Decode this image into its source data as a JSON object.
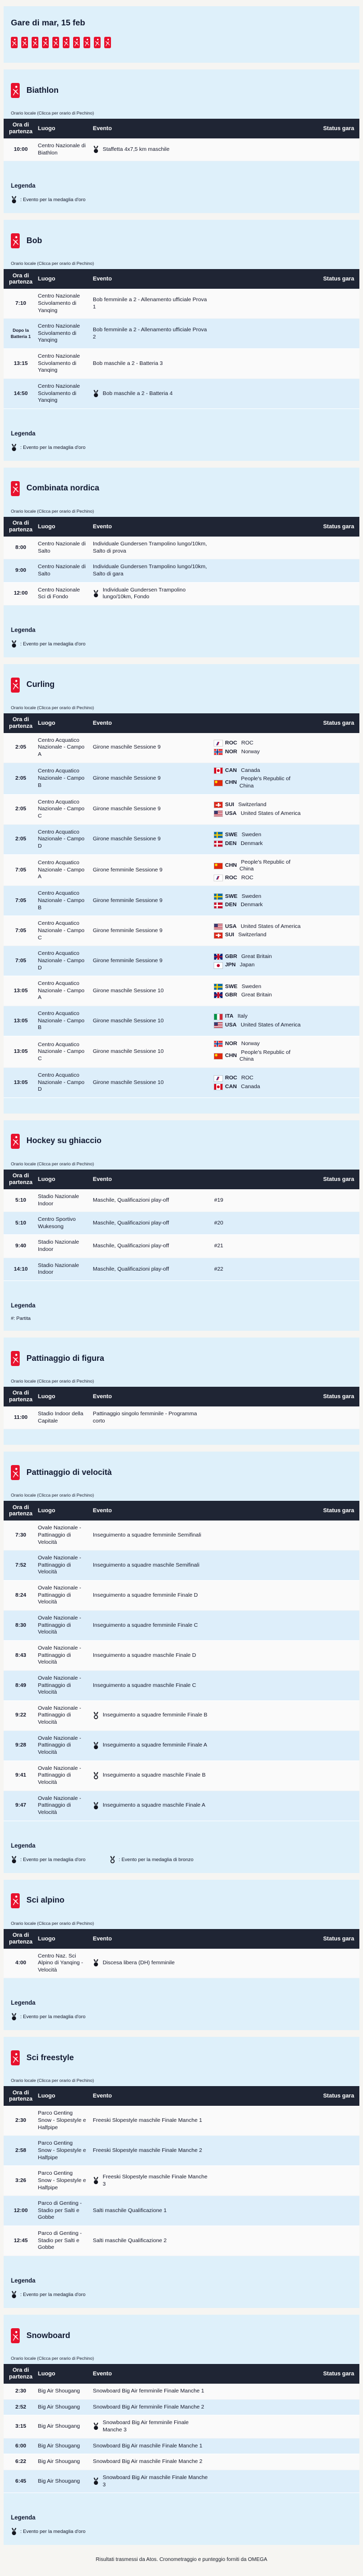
{
  "page": {
    "title": "Gare di mar, 15 feb",
    "time_note": "Orario locale (Clicca per orario di Pechino)",
    "footer": "Risultati trasmessi da Atos. Cronometraggio e punteggio forniti da OMEGA"
  },
  "colors": {
    "accent_red": "#e8112d",
    "table_header_bg": "#1f2534",
    "card_bg": "#def0fa",
    "row_bg": "#fafafa",
    "row_alt_bg": "#ddeefa"
  },
  "columns": {
    "time": "Ora di partenza",
    "venue": "Luogo",
    "event": "Evento",
    "status": "Status gara"
  },
  "legend": {
    "heading": "Legenda",
    "gold": ": Evento per la medaglia d'oro",
    "bronze": ": Evento per la medaglia di bronzo",
    "match": "#: Partita"
  },
  "sports_nav": [
    "biathlon",
    "bob",
    "combinata-nordica",
    "curling",
    "hockey-su-ghiaccio",
    "pattinaggio-di-figura",
    "pattinaggio-di-velocita",
    "sci-alpino",
    "sci-freestyle",
    "snowboard"
  ],
  "sections": [
    {
      "id": "biathlon",
      "title": "Biathlon",
      "legend": [
        "gold"
      ],
      "rows": [
        {
          "time": "10:00",
          "venue": "Centro Nazionale di Biathlon",
          "event": "Staffetta 4x7,5 km maschile",
          "medal": "gold"
        }
      ]
    },
    {
      "id": "bob",
      "title": "Bob",
      "legend": [
        "gold"
      ],
      "rows": [
        {
          "time": "7:10",
          "venue": "Centro Nazionale Scivolamento di Yanqing",
          "event": "Bob femminile a 2 - Allenamento ufficiale Prova 1"
        },
        {
          "time": "Dopo la Batteria 1",
          "time_small": true,
          "venue": "Centro Nazionale Scivolamento di Yanqing",
          "event": "Bob femminile a 2 - Allenamento ufficiale Prova 2"
        },
        {
          "time": "13:15",
          "venue": "Centro Nazionale Scivolamento di Yanqing",
          "event": "Bob maschile a 2 - Batteria 3"
        },
        {
          "time": "14:50",
          "venue": "Centro Nazionale Scivolamento di Yanqing",
          "event": "Bob maschile a 2 - Batteria 4",
          "medal": "gold"
        }
      ]
    },
    {
      "id": "combinata-nordica",
      "title": "Combinata nordica",
      "legend": [
        "gold"
      ],
      "rows": [
        {
          "time": "8:00",
          "venue": "Centro Nazionale di Salto",
          "event": "Individuale Gundersen Trampolino lungo/10km, Salto di prova"
        },
        {
          "time": "9:00",
          "venue": "Centro Nazionale di Salto",
          "event": "Individuale Gundersen Trampolino lungo/10km, Salto di gara"
        },
        {
          "time": "12:00",
          "venue": "Centro Nazionale Sci di Fondo",
          "event": "Individuale Gundersen Trampolino lungo/10km, Fondo",
          "medal": "gold"
        }
      ]
    },
    {
      "id": "curling",
      "title": "Curling",
      "legend": [],
      "rows": [
        {
          "time": "2:05",
          "venue": "Centro Acquatico Nazionale - Campo A",
          "event": "Girone maschile Sessione 9",
          "teams": [
            {
              "flag": "roc",
              "code": "ROC",
              "name": "ROC"
            },
            {
              "flag": "nor",
              "code": "NOR",
              "name": "Norway"
            }
          ]
        },
        {
          "time": "2:05",
          "venue": "Centro Acquatico Nazionale - Campo B",
          "event": "Girone maschile Sessione 9",
          "teams": [
            {
              "flag": "can",
              "code": "CAN",
              "name": "Canada"
            },
            {
              "flag": "chn",
              "code": "CHN",
              "name": "People's Republic of China"
            }
          ]
        },
        {
          "time": "2:05",
          "venue": "Centro Acquatico Nazionale - Campo C",
          "event": "Girone maschile Sessione 9",
          "teams": [
            {
              "flag": "sui",
              "code": "SUI",
              "name": "Switzerland"
            },
            {
              "flag": "usa",
              "code": "USA",
              "name": "United States of America"
            }
          ]
        },
        {
          "time": "2:05",
          "venue": "Centro Acquatico Nazionale - Campo D",
          "event": "Girone maschile Sessione 9",
          "teams": [
            {
              "flag": "swe",
              "code": "SWE",
              "name": "Sweden"
            },
            {
              "flag": "den",
              "code": "DEN",
              "name": "Denmark"
            }
          ]
        },
        {
          "time": "7:05",
          "venue": "Centro Acquatico Nazionale - Campo A",
          "event": "Girone femminile Sessione 9",
          "teams": [
            {
              "flag": "chn",
              "code": "CHN",
              "name": "People's Republic of China"
            },
            {
              "flag": "roc",
              "code": "ROC",
              "name": "ROC"
            }
          ]
        },
        {
          "time": "7:05",
          "venue": "Centro Acquatico Nazionale - Campo B",
          "event": "Girone femminile Sessione 9",
          "teams": [
            {
              "flag": "swe",
              "code": "SWE",
              "name": "Sweden"
            },
            {
              "flag": "den",
              "code": "DEN",
              "name": "Denmark"
            }
          ]
        },
        {
          "time": "7:05",
          "venue": "Centro Acquatico Nazionale - Campo C",
          "event": "Girone femminile Sessione 9",
          "teams": [
            {
              "flag": "usa",
              "code": "USA",
              "name": "United States of America"
            },
            {
              "flag": "sui",
              "code": "SUI",
              "name": "Switzerland"
            }
          ]
        },
        {
          "time": "7:05",
          "venue": "Centro Acquatico Nazionale - Campo D",
          "event": "Girone femminile Sessione 9",
          "teams": [
            {
              "flag": "gbr",
              "code": "GBR",
              "name": "Great Britain"
            },
            {
              "flag": "jpn",
              "code": "JPN",
              "name": "Japan"
            }
          ]
        },
        {
          "time": "13:05",
          "venue": "Centro Acquatico Nazionale - Campo A",
          "event": "Girone maschile Sessione 10",
          "teams": [
            {
              "flag": "swe",
              "code": "SWE",
              "name": "Sweden"
            },
            {
              "flag": "gbr",
              "code": "GBR",
              "name": "Great Britain"
            }
          ]
        },
        {
          "time": "13:05",
          "venue": "Centro Acquatico Nazionale - Campo B",
          "event": "Girone maschile Sessione 10",
          "teams": [
            {
              "flag": "ita",
              "code": "ITA",
              "name": "Italy"
            },
            {
              "flag": "usa",
              "code": "USA",
              "name": "United States of America"
            }
          ]
        },
        {
          "time": "13:05",
          "venue": "Centro Acquatico Nazionale - Campo C",
          "event": "Girone maschile Sessione 10",
          "teams": [
            {
              "flag": "nor",
              "code": "NOR",
              "name": "Norway"
            },
            {
              "flag": "chn",
              "code": "CHN",
              "name": "People's Republic of China"
            }
          ]
        },
        {
          "time": "13:05",
          "venue": "Centro Acquatico Nazionale - Campo D",
          "event": "Girone maschile Sessione 10",
          "teams": [
            {
              "flag": "roc",
              "code": "ROC",
              "name": "ROC"
            },
            {
              "flag": "can",
              "code": "CAN",
              "name": "Canada"
            }
          ]
        }
      ]
    },
    {
      "id": "hockey-su-ghiaccio",
      "title": "Hockey su ghiaccio",
      "legend": [
        "match"
      ],
      "rows": [
        {
          "time": "5:10",
          "venue": "Stadio Nazionale Indoor",
          "event": "Maschile, Qualificazioni play-off",
          "match": "#19"
        },
        {
          "time": "5:10",
          "venue": "Centro Sportivo Wukesong",
          "event": "Maschile, Qualificazioni play-off",
          "match": "#20"
        },
        {
          "time": "9:40",
          "venue": "Stadio Nazionale Indoor",
          "event": "Maschile, Qualificazioni play-off",
          "match": "#21"
        },
        {
          "time": "14:10",
          "venue": "Stadio Nazionale Indoor",
          "event": "Maschile, Qualificazioni play-off",
          "match": "#22"
        }
      ]
    },
    {
      "id": "pattinaggio-di-figura",
      "title": "Pattinaggio di figura",
      "legend": [],
      "rows": [
        {
          "time": "11:00",
          "venue": "Stadio Indoor della Capitale",
          "event": "Pattinaggio singolo femminile - Programma corto"
        }
      ]
    },
    {
      "id": "pattinaggio-di-velocita",
      "title": "Pattinaggio di velocità",
      "legend": [
        "gold",
        "bronze"
      ],
      "rows": [
        {
          "time": "7:30",
          "venue": "Ovale Nazionale - Pattinaggio di Velocità",
          "event": "Inseguimento a squadre femminile Semifinali"
        },
        {
          "time": "7:52",
          "venue": "Ovale Nazionale - Pattinaggio di Velocità",
          "event": "Inseguimento a squadre maschile Semifinali"
        },
        {
          "time": "8:24",
          "venue": "Ovale Nazionale - Pattinaggio di Velocità",
          "event": "Inseguimento a squadre femminile Finale D"
        },
        {
          "time": "8:30",
          "venue": "Ovale Nazionale - Pattinaggio di Velocità",
          "event": "Inseguimento a squadre femminile Finale C"
        },
        {
          "time": "8:43",
          "venue": "Ovale Nazionale - Pattinaggio di Velocità",
          "event": "Inseguimento a squadre maschile Finale D"
        },
        {
          "time": "8:49",
          "venue": "Ovale Nazionale - Pattinaggio di Velocità",
          "event": "Inseguimento a squadre maschile Finale C"
        },
        {
          "time": "9:22",
          "venue": "Ovale Nazionale - Pattinaggio di Velocità",
          "event": "Inseguimento a squadre femminile Finale B",
          "medal": "bronze"
        },
        {
          "time": "9:28",
          "venue": "Ovale Nazionale - Pattinaggio di Velocità",
          "event": "Inseguimento a squadre femminile Finale A",
          "medal": "gold"
        },
        {
          "time": "9:41",
          "venue": "Ovale Nazionale - Pattinaggio di Velocità",
          "event": "Inseguimento a squadre maschile Finale B",
          "medal": "bronze"
        },
        {
          "time": "9:47",
          "venue": "Ovale Nazionale - Pattinaggio di Velocità",
          "event": "Inseguimento a squadre maschile Finale A",
          "medal": "gold"
        }
      ]
    },
    {
      "id": "sci-alpino",
      "title": "Sci alpino",
      "legend": [
        "gold"
      ],
      "rows": [
        {
          "time": "4:00",
          "venue": "Centro Naz. Sci Alpino di Yanqing - Velocità",
          "event": "Discesa libera (DH) femminile",
          "medal": "gold"
        }
      ]
    },
    {
      "id": "sci-freestyle",
      "title": "Sci freestyle",
      "legend": [
        "gold"
      ],
      "rows": [
        {
          "time": "2:30",
          "venue": "Parco Genting Snow - Slopestyle e Halfpipe",
          "event": "Freeski Slopestyle maschile Finale Manche 1"
        },
        {
          "time": "2:58",
          "venue": "Parco Genting Snow - Slopestyle e Halfpipe",
          "event": "Freeski Slopestyle maschile Finale Manche 2"
        },
        {
          "time": "3:26",
          "venue": "Parco Genting Snow - Slopestyle e Halfpipe",
          "event": "Freeski Slopestyle maschile Finale Manche 3",
          "medal": "gold"
        },
        {
          "time": "12:00",
          "venue": "Parco di Genting - Stadio per Salti e Gobbe",
          "event": "Salti maschile Qualificazione 1"
        },
        {
          "time": "12:45",
          "venue": "Parco di Genting - Stadio per Salti e Gobbe",
          "event": "Salti maschile Qualificazione 2"
        }
      ]
    },
    {
      "id": "snowboard",
      "title": "Snowboard",
      "legend": [
        "gold"
      ],
      "rows": [
        {
          "time": "2:30",
          "venue": "Big Air Shougang",
          "event": "Snowboard Big Air femminile Finale Manche 1"
        },
        {
          "time": "2:52",
          "venue": "Big Air Shougang",
          "event": "Snowboard Big Air femminile Finale Manche 2"
        },
        {
          "time": "3:15",
          "venue": "Big Air Shougang",
          "event": "Snowboard Big Air femminile Finale Manche 3",
          "medal": "gold"
        },
        {
          "time": "6:00",
          "venue": "Big Air Shougang",
          "event": "Snowboard Big Air maschile Finale Manche 1"
        },
        {
          "time": "6:22",
          "venue": "Big Air Shougang",
          "event": "Snowboard Big Air maschile Finale Manche 2"
        },
        {
          "time": "6:45",
          "venue": "Big Air Shougang",
          "event": "Snowboard Big Air maschile Finale Manche 3",
          "medal": "gold"
        }
      ]
    }
  ]
}
